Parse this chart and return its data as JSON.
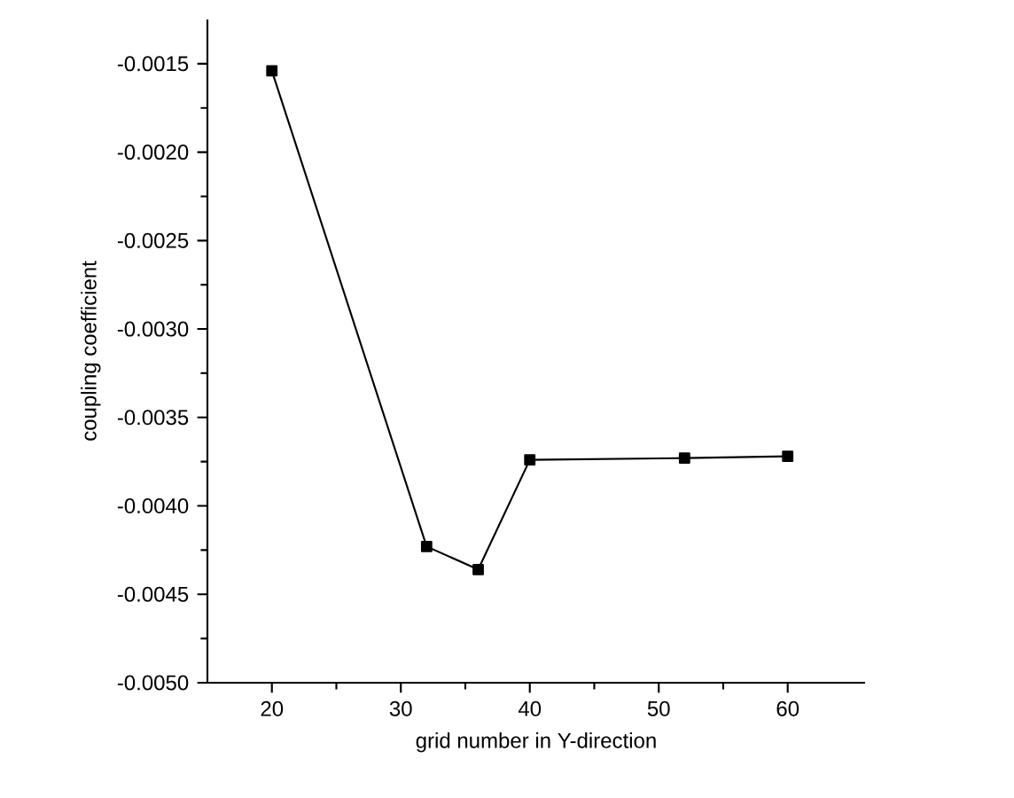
{
  "chart_data": {
    "type": "line",
    "xlabel": "grid number in Y-direction",
    "ylabel": "coupling coefficient",
    "x": [
      20,
      32,
      36,
      40,
      52,
      60
    ],
    "series": [
      {
        "color": "#000000",
        "values": [
          -0.00154,
          -0.00423,
          -0.00436,
          -0.00374,
          -0.00373,
          -0.00372
        ]
      }
    ],
    "xlim": [
      15,
      66
    ],
    "ylim": [
      -0.005,
      -0.00125
    ],
    "xticks": [
      20,
      30,
      40,
      50,
      60
    ],
    "yticks": [
      {
        "value": -0.005,
        "label": "-0.0050"
      },
      {
        "value": -0.0045,
        "label": "-0.0045"
      },
      {
        "value": -0.004,
        "label": "-0.0040"
      },
      {
        "value": -0.0035,
        "label": "-0.0035"
      },
      {
        "value": -0.003,
        "label": "-0.0030"
      },
      {
        "value": -0.0025,
        "label": "-0.0025"
      },
      {
        "value": -0.002,
        "label": "-0.0020"
      },
      {
        "value": -0.0015,
        "label": "-0.0015"
      }
    ],
    "marker": "square",
    "line_style": "solid",
    "grid": false
  }
}
